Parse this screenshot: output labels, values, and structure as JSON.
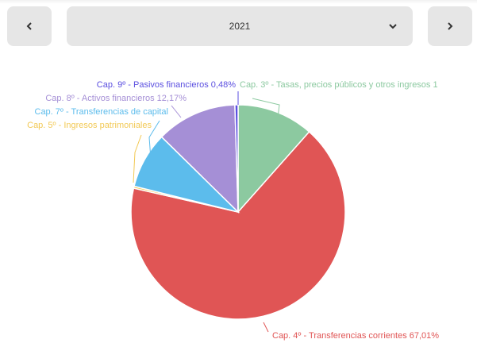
{
  "header": {
    "selected_year": "2021",
    "prev_icon": "chevron-left-icon",
    "next_icon": "chevron-right-icon",
    "dropdown_icon": "chevron-down-icon"
  },
  "chart_data": {
    "type": "pie",
    "title": "",
    "slices": [
      {
        "label": "Cap. 3º - Tasas, precios públicos y otros ingresos 1",
        "value": 11.55,
        "color": "#8cc9a0"
      },
      {
        "label": "Cap. 4º - Transferencias corrientes 67,01%",
        "value": 67.01,
        "color": "#e05555"
      },
      {
        "label": "Cap. 5º - Ingresos patrimoniales",
        "value": 0.3,
        "color": "#f2c955"
      },
      {
        "label": "Cap. 7º - Transferencias de capital",
        "value": 8.48,
        "color": "#5cbcec"
      },
      {
        "label": "Cap. 8º - Activos financieros 12,17%",
        "value": 12.17,
        "color": "#a58fd6"
      },
      {
        "label": "Cap. 9º - Pasivos financieros 0,48%",
        "value": 0.48,
        "color": "#5b4fe0"
      }
    ]
  }
}
